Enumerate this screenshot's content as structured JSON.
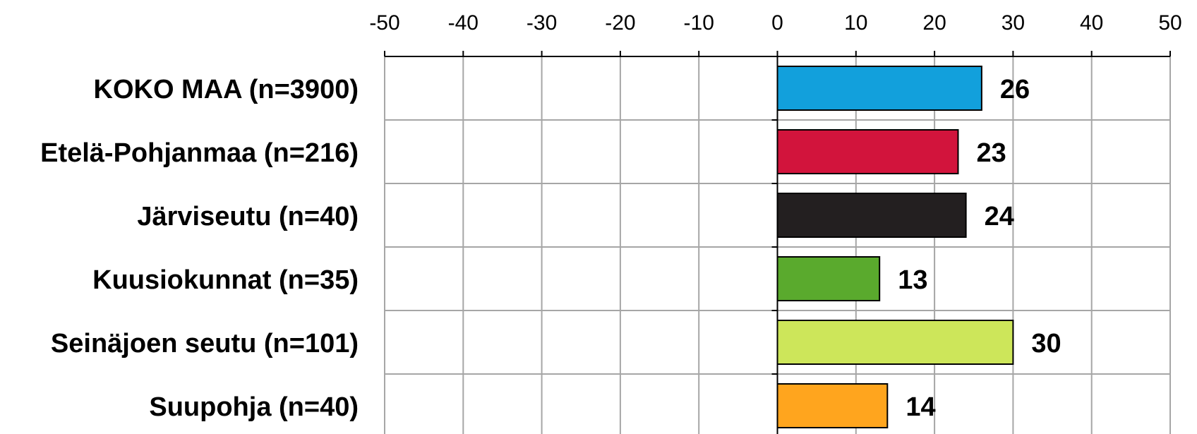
{
  "chart_data": {
    "type": "bar",
    "orientation": "horizontal",
    "categories": [
      "KOKO MAA (n=3900)",
      "Etelä-Pohjanmaa (n=216)",
      "Järviseutu (n=40)",
      "Kuusiokunnat (n=35)",
      "Seinäjoen seutu (n=101)",
      "Suupohja (n=40)"
    ],
    "values": [
      26,
      23,
      24,
      13,
      30,
      14
    ],
    "data_labels": [
      "26",
      "23",
      "24",
      "13",
      "30",
      "14"
    ],
    "bar_colors": [
      "#12A0DC",
      "#D2143C",
      "#231F20",
      "#5AAA2D",
      "#CDE65A",
      "#FFA51E"
    ],
    "xlim": [
      -50,
      50
    ],
    "x_ticks": [
      -50,
      -40,
      -30,
      -20,
      -10,
      0,
      10,
      20,
      30,
      40,
      50
    ],
    "x_tick_labels": [
      "-50",
      "-40",
      "-30",
      "-20",
      "-10",
      "0",
      "10",
      "20",
      "30",
      "40",
      "50"
    ],
    "x_axis_position": "top",
    "grid": true,
    "legend": "none"
  }
}
